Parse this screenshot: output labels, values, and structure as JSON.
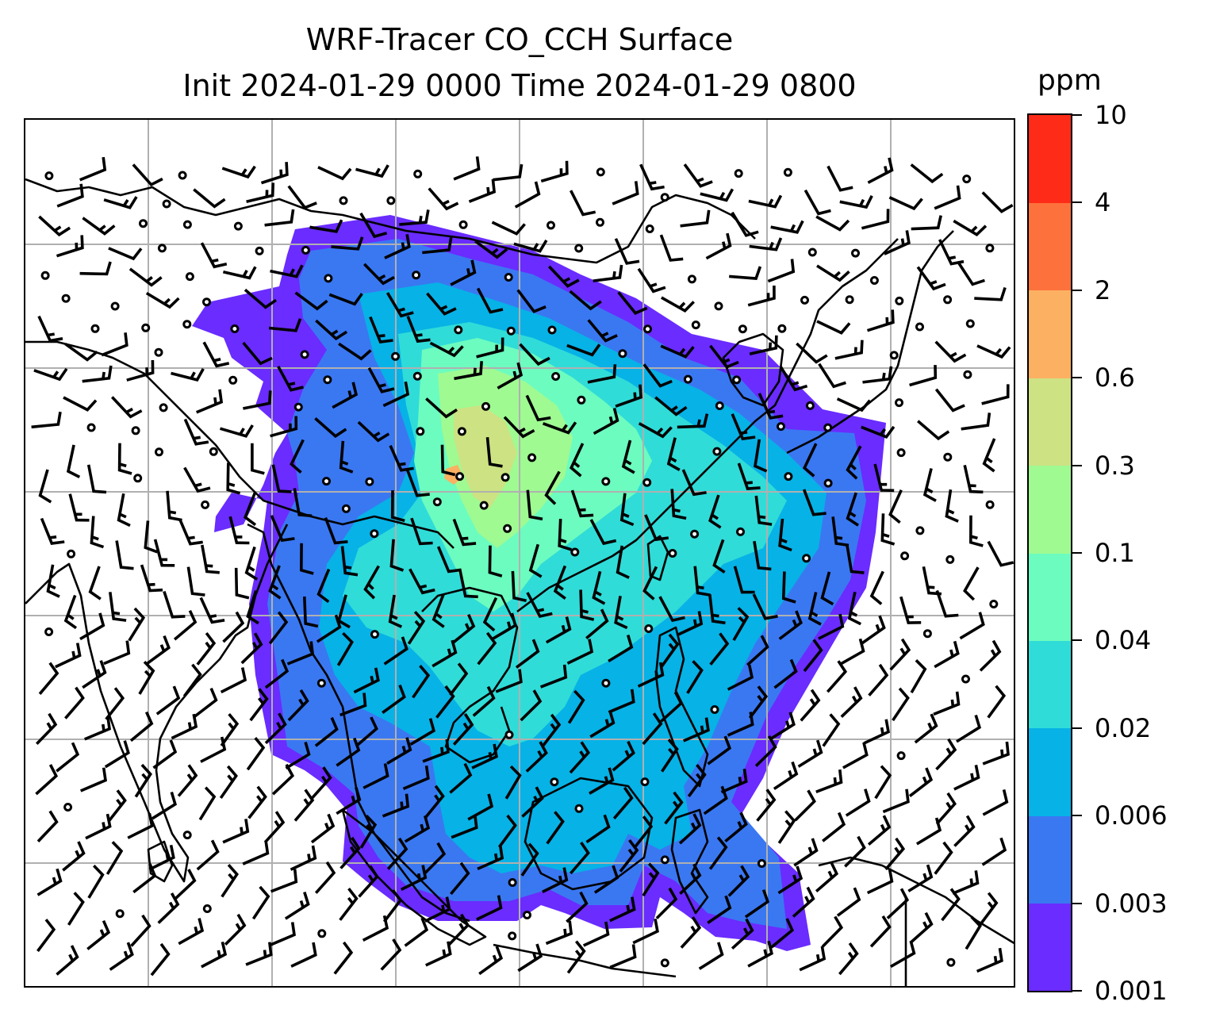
{
  "title": {
    "line1": "WRF-Tracer CO_CCH Surface",
    "line2": "Init 2024-01-29 0000 Time 2024-01-29 0800"
  },
  "colorbar": {
    "unit": "ppm",
    "levels": [
      "0.001",
      "0.003",
      "0.006",
      "0.02",
      "0.04",
      "0.1",
      "0.3",
      "0.6",
      "2",
      "4",
      "10"
    ],
    "colors": [
      "#6a2cff",
      "#3a78f2",
      "#07b2e6",
      "#30dcd8",
      "#6cfcbf",
      "#9ffa92",
      "#cde283",
      "#fcb062",
      "#fd723c",
      "#fd2b18"
    ]
  },
  "map": {
    "tracer": "CO_CCH",
    "level": "Surface",
    "init_time": "2024-01-29 0000",
    "valid_time": "2024-01-29 0800",
    "gridlines": true,
    "overlays": [
      "coastlines",
      "country-borders",
      "wind-barbs",
      "calm-wind-circles"
    ],
    "palette": {
      "coastline": "#000000",
      "gridline": "#b0b0b0",
      "background": "#ffffff"
    }
  }
}
